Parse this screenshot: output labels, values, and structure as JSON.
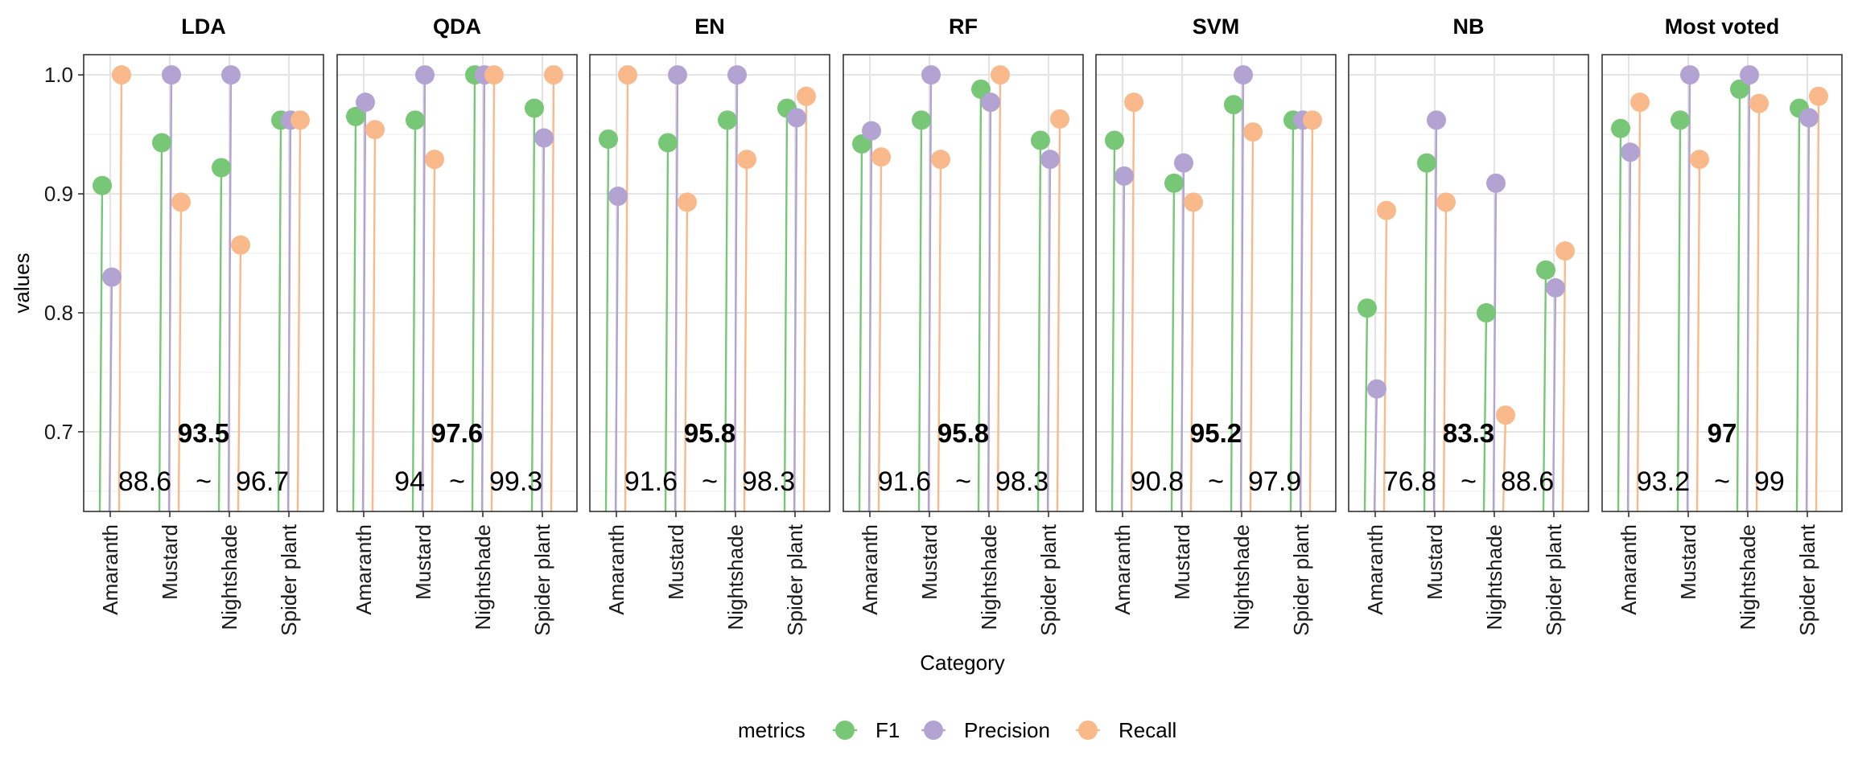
{
  "chart_data": {
    "type": "scatter",
    "xlabel": "Category",
    "ylabel": "values",
    "ylim": [
      0.633,
      1.017
    ],
    "yticks": [
      0.7,
      0.8,
      0.9,
      1.0
    ],
    "ytick_labels": [
      "0.7",
      "0.8",
      "0.9",
      "1.0"
    ],
    "categories": [
      "Amaranth",
      "Mustard",
      "Nightshade",
      "Spider plant"
    ],
    "legend": {
      "title": "metrics",
      "position": "bottom",
      "items": [
        {
          "name": "F1",
          "color": "#77c777"
        },
        {
          "name": "Precision",
          "color": "#b3a3d3"
        },
        {
          "name": "Recall",
          "color": "#f9b98a"
        }
      ]
    },
    "facets": [
      {
        "title": "LDA",
        "accuracy": "93.5",
        "range_low": "88.6",
        "range_sep": "~",
        "range_high": "96.7",
        "series": [
          {
            "name": "F1",
            "values": [
              0.907,
              0.943,
              0.922,
              0.962
            ]
          },
          {
            "name": "Precision",
            "values": [
              0.83,
              1.0,
              1.0,
              0.962
            ]
          },
          {
            "name": "Recall",
            "values": [
              1.0,
              0.893,
              0.857,
              0.962
            ]
          }
        ]
      },
      {
        "title": "QDA",
        "accuracy": "97.6",
        "range_low": "94",
        "range_sep": "~",
        "range_high": "99.3",
        "series": [
          {
            "name": "F1",
            "values": [
              0.965,
              0.962,
              1.0,
              0.972
            ]
          },
          {
            "name": "Precision",
            "values": [
              0.977,
              1.0,
              1.0,
              0.947
            ]
          },
          {
            "name": "Recall",
            "values": [
              0.954,
              0.929,
              1.0,
              1.0
            ]
          }
        ]
      },
      {
        "title": "EN",
        "accuracy": "95.8",
        "range_low": "91.6",
        "range_sep": "~",
        "range_high": "98.3",
        "series": [
          {
            "name": "F1",
            "values": [
              0.946,
              0.943,
              0.962,
              0.972
            ]
          },
          {
            "name": "Precision",
            "values": [
              0.898,
              1.0,
              1.0,
              0.964
            ]
          },
          {
            "name": "Recall",
            "values": [
              1.0,
              0.893,
              0.929,
              0.982
            ]
          }
        ]
      },
      {
        "title": "RF",
        "accuracy": "95.8",
        "range_low": "91.6",
        "range_sep": "~",
        "range_high": "98.3",
        "series": [
          {
            "name": "F1",
            "values": [
              0.942,
              0.962,
              0.988,
              0.945
            ]
          },
          {
            "name": "Precision",
            "values": [
              0.953,
              1.0,
              0.977,
              0.929
            ]
          },
          {
            "name": "Recall",
            "values": [
              0.931,
              0.929,
              1.0,
              0.963
            ]
          }
        ]
      },
      {
        "title": "SVM",
        "accuracy": "95.2",
        "range_low": "90.8",
        "range_sep": "~",
        "range_high": "97.9",
        "series": [
          {
            "name": "F1",
            "values": [
              0.945,
              0.909,
              0.975,
              0.962
            ]
          },
          {
            "name": "Precision",
            "values": [
              0.915,
              0.926,
              1.0,
              0.962
            ]
          },
          {
            "name": "Recall",
            "values": [
              0.977,
              0.893,
              0.952,
              0.962
            ]
          }
        ]
      },
      {
        "title": "NB",
        "accuracy": "83.3",
        "range_low": "76.8",
        "range_sep": "~",
        "range_high": "88.6",
        "series": [
          {
            "name": "F1",
            "values": [
              0.804,
              0.926,
              0.8,
              0.836
            ]
          },
          {
            "name": "Precision",
            "values": [
              0.736,
              0.962,
              0.909,
              0.821
            ]
          },
          {
            "name": "Recall",
            "values": [
              0.886,
              0.893,
              0.714,
              0.852
            ]
          }
        ]
      },
      {
        "title": "Most voted",
        "accuracy": "97",
        "range_low": "93.2",
        "range_sep": "~",
        "range_high": "99",
        "series": [
          {
            "name": "F1",
            "values": [
              0.955,
              0.962,
              0.988,
              0.972
            ]
          },
          {
            "name": "Precision",
            "values": [
              0.935,
              1.0,
              1.0,
              0.964
            ]
          },
          {
            "name": "Recall",
            "values": [
              0.977,
              0.929,
              0.976,
              0.982
            ]
          }
        ]
      }
    ]
  }
}
